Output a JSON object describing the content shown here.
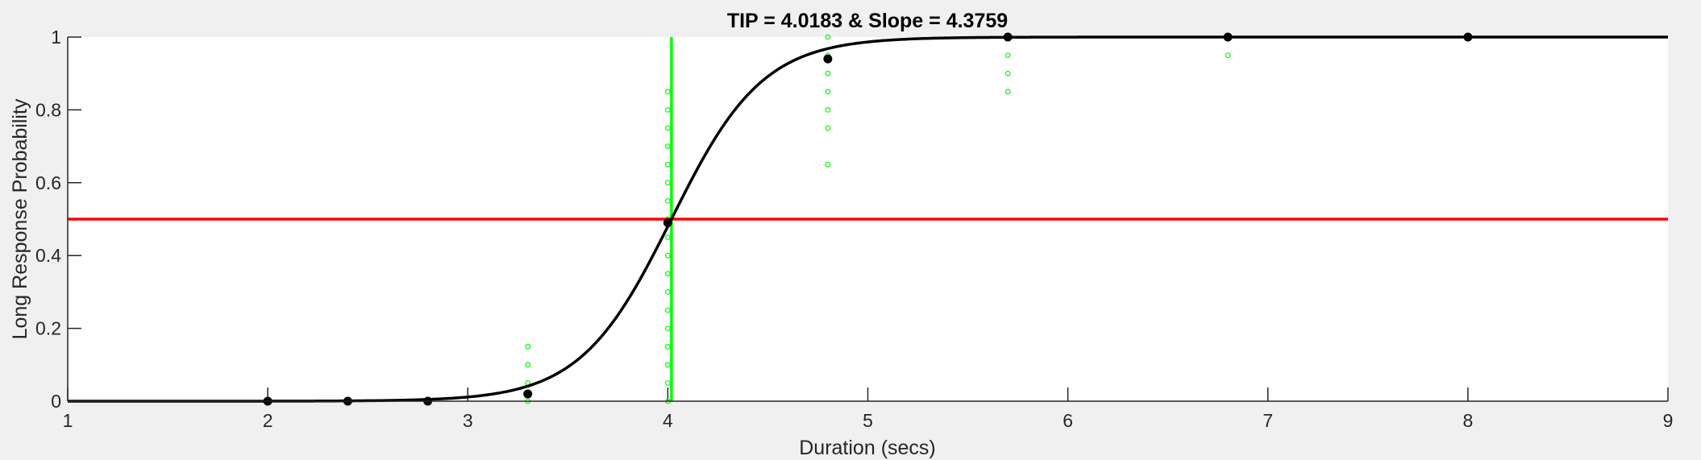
{
  "chart_data": {
    "type": "scatter",
    "title": "TIP = 4.0183 & Slope = 4.3759",
    "xlabel": "Duration (secs)",
    "ylabel": "Long Response Probability",
    "xlim": [
      1,
      9
    ],
    "ylim": [
      0,
      1
    ],
    "xticks": [
      1,
      2,
      3,
      4,
      5,
      6,
      7,
      8,
      9
    ],
    "yticks": [
      0,
      0.2,
      0.4,
      0.6,
      0.8,
      1
    ],
    "ytick_labels": [
      "0",
      "0.2",
      "0.4",
      "0.6",
      "0.8",
      "1"
    ],
    "grid": false,
    "colors": {
      "fit_curve": "#000000",
      "mean_points": "#000000",
      "threshold_line": "#ff0000",
      "tip_line": "#00ff00",
      "individual_points": "#00ff00",
      "axes_background": "#ffffff",
      "figure_background": "#f0f0f0"
    },
    "fit_curve": {
      "model": "logistic",
      "tip": 4.0183,
      "slope": 4.3759
    },
    "threshold_y": 0.5,
    "tip_x": 4.0183,
    "series": [
      {
        "role": "mean",
        "x": [
          2,
          2.4,
          2.8,
          3.3,
          4,
          4.8,
          5.7,
          6.8,
          8
        ],
        "y": [
          0,
          0,
          0,
          0.02,
          0.49,
          0.94,
          1,
          1,
          1
        ]
      },
      {
        "role": "individual",
        "points": [
          [
            3.3,
            0
          ],
          [
            3.3,
            0.05
          ],
          [
            3.3,
            0.1
          ],
          [
            3.3,
            0.15
          ],
          [
            4,
            0
          ],
          [
            4,
            0.05
          ],
          [
            4,
            0.1
          ],
          [
            4,
            0.15
          ],
          [
            4,
            0.2
          ],
          [
            4,
            0.25
          ],
          [
            4,
            0.3
          ],
          [
            4,
            0.35
          ],
          [
            4,
            0.4
          ],
          [
            4,
            0.45
          ],
          [
            4,
            0.5
          ],
          [
            4,
            0.55
          ],
          [
            4,
            0.6
          ],
          [
            4,
            0.65
          ],
          [
            4,
            0.7
          ],
          [
            4,
            0.75
          ],
          [
            4,
            0.8
          ],
          [
            4,
            0.85
          ],
          [
            4.8,
            0.65
          ],
          [
            4.8,
            0.75
          ],
          [
            4.8,
            0.8
          ],
          [
            4.8,
            0.85
          ],
          [
            4.8,
            0.9
          ],
          [
            4.8,
            0.95
          ],
          [
            4.8,
            1
          ],
          [
            5.7,
            0.85
          ],
          [
            5.7,
            0.9
          ],
          [
            5.7,
            0.95
          ],
          [
            5.7,
            1
          ],
          [
            6.8,
            0.95
          ],
          [
            6.8,
            1
          ],
          [
            8,
            1
          ]
        ]
      }
    ]
  }
}
